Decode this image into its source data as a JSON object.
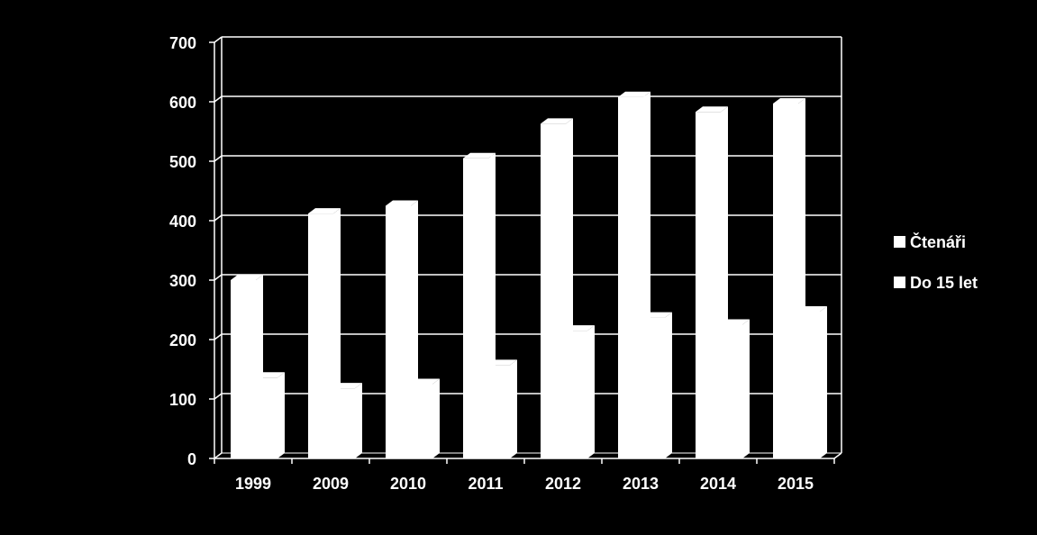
{
  "chart_data": {
    "type": "bar",
    "categories": [
      "1999",
      "2009",
      "2010",
      "2011",
      "2012",
      "2013",
      "2014",
      "2015"
    ],
    "series": [
      {
        "name": "Čtenáři",
        "values": [
          300,
          412,
          425,
          505,
          563,
          608,
          583,
          597
        ],
        "color": "#ffffff"
      },
      {
        "name": "Do 15 let",
        "values": [
          136,
          118,
          125,
          157,
          215,
          237,
          225,
          247
        ],
        "color": "#ffffff"
      }
    ],
    "yticks": [
      "0",
      "100",
      "200",
      "300",
      "400",
      "500",
      "600",
      "700"
    ],
    "ylim": [
      0,
      700
    ],
    "grid": true,
    "legend": "right",
    "background": "#000000",
    "foreground": "#ffffff"
  }
}
